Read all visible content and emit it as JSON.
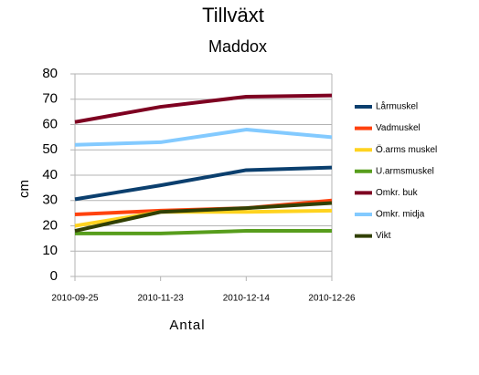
{
  "chart_data": {
    "type": "line",
    "title": "Tillväxt",
    "subtitle": "Maddox",
    "x_label": "Antal",
    "y_label": "cm",
    "categories": [
      "2010-09-25",
      "2010-11-23",
      "2010-12-14",
      "2010-12-26"
    ],
    "series": [
      {
        "name": "Lårmuskel",
        "color": "#0b3f6e",
        "values": [
          30.5,
          36,
          42,
          43
        ]
      },
      {
        "name": "Vadmuskel",
        "color": "#ff420e",
        "values": [
          24.5,
          26,
          27,
          30
        ]
      },
      {
        "name": "Ö.arms muskel",
        "color": "#ffd320",
        "values": [
          20,
          25.5,
          25.5,
          26
        ]
      },
      {
        "name": "U.armsmuskel",
        "color": "#579d1c",
        "values": [
          17,
          17,
          18,
          18
        ]
      },
      {
        "name": "Omkr. buk",
        "color": "#7e0021",
        "values": [
          61,
          67,
          71,
          71.5
        ]
      },
      {
        "name": "Omkr. midja",
        "color": "#83caff",
        "values": [
          52,
          53,
          58,
          55
        ]
      },
      {
        "name": "Vikt",
        "color": "#314004",
        "values": [
          18,
          25.5,
          27,
          29
        ]
      }
    ],
    "ylim": [
      0,
      80
    ],
    "yticks": [
      0,
      10,
      20,
      30,
      40,
      50,
      60,
      70,
      80
    ],
    "grid": true
  }
}
